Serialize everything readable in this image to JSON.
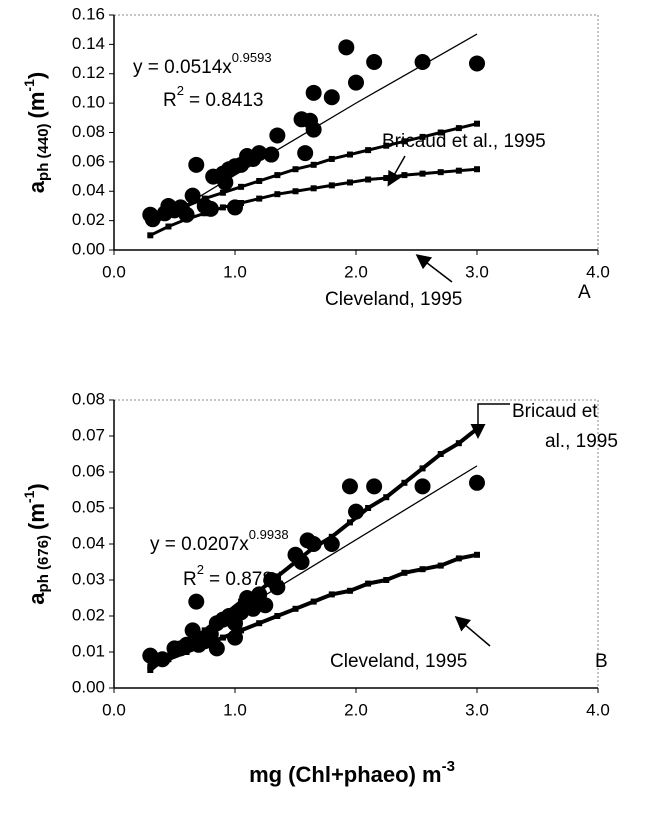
{
  "chart_data": [
    {
      "type": "scatter",
      "panel_label": "A",
      "y_label": {
        "main": "a",
        "sub": "ph (440)",
        "unit": "(m",
        "sup": "-1",
        "close": ")"
      },
      "equation": {
        "text": "y = 0.0514x",
        "exponent": "0.9593"
      },
      "r2": {
        "prefix": "R",
        "exponent": "2",
        "text": "= 0.8413"
      },
      "xlim": [
        0,
        4
      ],
      "xticks": [
        {
          "value": 0,
          "label": "0.0"
        },
        {
          "value": 1,
          "label": "1.0"
        },
        {
          "value": 2,
          "label": "2.0"
        },
        {
          "value": 3,
          "label": "3.0"
        },
        {
          "value": 4,
          "label": "4.0"
        }
      ],
      "ylim": [
        0,
        0.16
      ],
      "yticks": [
        {
          "value": 0,
          "label": "0.00"
        },
        0.02,
        0.04,
        0.06,
        0.08,
        {
          "value": 0.1,
          "label": "0.10"
        },
        0.12,
        0.14,
        0.16
      ],
      "series": [
        {
          "mode": "markers",
          "marker": "circle",
          "color": "#000000",
          "x": [
            0.3,
            0.32,
            0.42,
            0.45,
            0.5,
            0.55,
            0.6,
            0.65,
            0.68,
            0.75,
            0.8,
            0.82,
            0.9,
            0.92,
            0.95,
            1.0,
            1.0,
            1.05,
            1.1,
            1.15,
            1.2,
            1.3,
            1.35,
            1.55,
            1.58,
            1.62,
            1.65,
            1.65,
            1.8,
            1.92,
            2.0,
            2.15,
            2.55,
            3.0
          ],
          "values": [
            0.024,
            0.021,
            0.025,
            0.03,
            0.027,
            0.029,
            0.024,
            0.037,
            0.058,
            0.03,
            0.028,
            0.05,
            0.052,
            0.046,
            0.055,
            0.029,
            0.057,
            0.058,
            0.064,
            0.062,
            0.066,
            0.065,
            0.078,
            0.089,
            0.066,
            0.088,
            0.107,
            0.082,
            0.104,
            0.138,
            0.114,
            0.128,
            0.128,
            0.127
          ]
        },
        {
          "mode": "line",
          "color": "#000000",
          "x": [
            0.3,
            1.0,
            2.0,
            3.0
          ],
          "values": [
            0.016,
            0.051,
            0.1,
            0.147
          ]
        },
        {
          "name": "Bricaud et al., 1995",
          "mode": "line+markers",
          "marker": "square",
          "color": "#000000",
          "x": [
            0.3,
            0.45,
            0.6,
            0.75,
            0.9,
            1.05,
            1.2,
            1.35,
            1.5,
            1.65,
            1.8,
            1.95,
            2.1,
            2.25,
            2.4,
            2.55,
            2.7,
            2.85,
            3.0
          ],
          "values": [
            0.019,
            0.025,
            0.03,
            0.035,
            0.039,
            0.043,
            0.047,
            0.051,
            0.055,
            0.058,
            0.062,
            0.065,
            0.068,
            0.071,
            0.074,
            0.077,
            0.08,
            0.083,
            0.086
          ]
        },
        {
          "name": "Cleveland, 1995",
          "mode": "line+markers",
          "marker": "square",
          "color": "#000000",
          "x": [
            0.3,
            0.45,
            0.6,
            0.75,
            0.9,
            1.05,
            1.2,
            1.35,
            1.5,
            1.65,
            1.8,
            1.95,
            2.1,
            2.25,
            2.4,
            2.55,
            2.7,
            2.85,
            3.0
          ],
          "values": [
            0.01,
            0.016,
            0.021,
            0.025,
            0.029,
            0.032,
            0.035,
            0.038,
            0.04,
            0.042,
            0.044,
            0.046,
            0.048,
            0.049,
            0.051,
            0.052,
            0.053,
            0.054,
            0.055
          ]
        }
      ]
    },
    {
      "type": "scatter",
      "panel_label": "B",
      "y_label": {
        "main": "a",
        "sub": "ph (676)",
        "unit": "(m",
        "sup": "-1",
        "close": ")"
      },
      "x_label": {
        "text": "mg (Chl+phaeo) m",
        "sup": "-3"
      },
      "equation": {
        "text": "y = 0.0207x",
        "exponent": "0.9938"
      },
      "r2": {
        "prefix": "R",
        "exponent": "2",
        "text": "= 0.8784"
      },
      "xlim": [
        0,
        4
      ],
      "xticks": [
        {
          "value": 0,
          "label": "0.0"
        },
        {
          "value": 1,
          "label": "1.0"
        },
        {
          "value": 2,
          "label": "2.0"
        },
        {
          "value": 3,
          "label": "3.0"
        },
        {
          "value": 4,
          "label": "4.0"
        }
      ],
      "ylim": [
        0,
        0.08
      ],
      "yticks": [
        {
          "value": 0,
          "label": "0.00"
        },
        0.01,
        0.02,
        0.03,
        0.04,
        0.05,
        0.06,
        0.07,
        0.08
      ],
      "series": [
        {
          "mode": "markers",
          "marker": "circle",
          "color": "#000000",
          "x": [
            0.3,
            0.4,
            0.5,
            0.55,
            0.6,
            0.65,
            0.68,
            0.7,
            0.75,
            0.8,
            0.85,
            0.85,
            0.9,
            0.95,
            1.0,
            1.0,
            1.05,
            1.1,
            1.15,
            1.2,
            1.25,
            1.3,
            1.35,
            1.5,
            1.55,
            1.6,
            1.65,
            1.8,
            1.95,
            2.0,
            2.15,
            2.55,
            3.0
          ],
          "values": [
            0.009,
            0.008,
            0.011,
            0.011,
            0.012,
            0.016,
            0.024,
            0.012,
            0.013,
            0.015,
            0.018,
            0.011,
            0.019,
            0.02,
            0.018,
            0.014,
            0.021,
            0.025,
            0.022,
            0.026,
            0.023,
            0.03,
            0.028,
            0.037,
            0.035,
            0.041,
            0.04,
            0.04,
            0.056,
            0.049,
            0.056,
            0.056,
            0.057
          ]
        },
        {
          "mode": "line",
          "color": "#000000",
          "x": [
            0.3,
            3.0
          ],
          "values": [
            0.0063,
            0.0617
          ]
        },
        {
          "label_lines": [
            "Bricaud et",
            "al., 1995"
          ],
          "mode": "line+markers",
          "marker": "square",
          "color": "#000000",
          "x": [
            0.3,
            0.45,
            0.6,
            0.75,
            0.9,
            1.05,
            1.2,
            1.35,
            1.5,
            1.65,
            1.8,
            1.95,
            2.1,
            2.25,
            2.4,
            2.55,
            2.7,
            2.85,
            3.0
          ],
          "values": [
            0.005,
            0.009,
            0.012,
            0.016,
            0.02,
            0.024,
            0.027,
            0.031,
            0.035,
            0.039,
            0.042,
            0.046,
            0.05,
            0.053,
            0.057,
            0.061,
            0.065,
            0.068,
            0.072
          ]
        },
        {
          "name": "Cleveland, 1995",
          "mode": "line+markers",
          "marker": "square",
          "color": "#000000",
          "x": [
            0.3,
            0.45,
            0.6,
            0.75,
            0.9,
            1.05,
            1.2,
            1.35,
            1.5,
            1.65,
            1.8,
            1.95,
            2.1,
            2.25,
            2.4,
            2.55,
            2.7,
            2.85,
            3.0
          ],
          "values": [
            0.006,
            0.008,
            0.01,
            0.012,
            0.014,
            0.016,
            0.018,
            0.02,
            0.022,
            0.024,
            0.026,
            0.027,
            0.029,
            0.03,
            0.032,
            0.033,
            0.034,
            0.036,
            0.037
          ]
        }
      ]
    }
  ]
}
